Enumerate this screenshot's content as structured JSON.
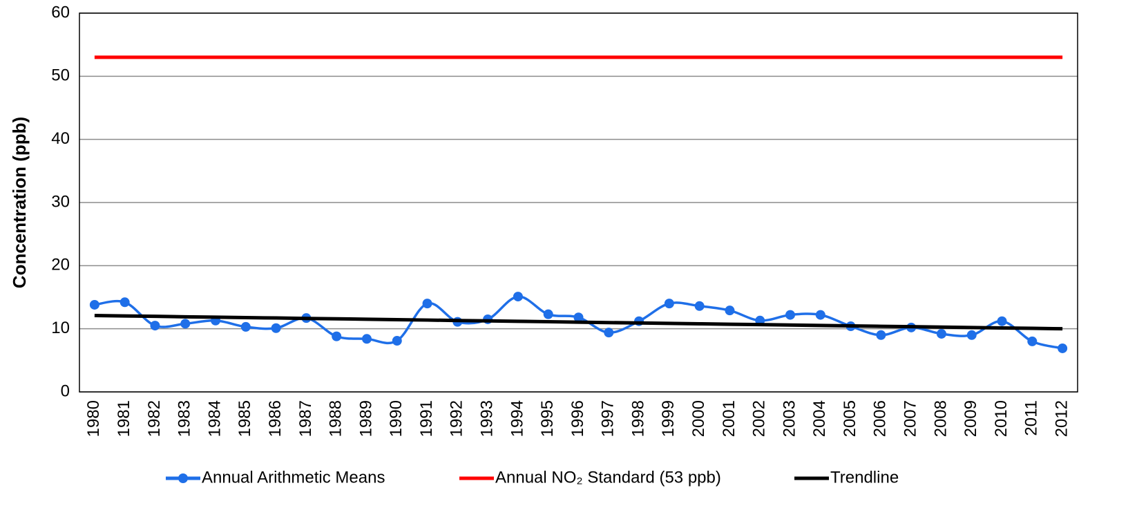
{
  "chart_data": {
    "type": "line",
    "y_label": "Concentration (ppb)",
    "categories": [
      "1980",
      "1981",
      "1982",
      "1983",
      "1984",
      "1985",
      "1986",
      "1987",
      "1988",
      "1989",
      "1990",
      "1991",
      "1992",
      "1993",
      "1994",
      "1995",
      "1996",
      "1997",
      "1998",
      "1999",
      "2000",
      "2001",
      "2002",
      "2003",
      "2004",
      "2005",
      "2006",
      "2007",
      "2008",
      "2009",
      "2010",
      "2011",
      "2012"
    ],
    "series": [
      {
        "name": "Annual Arithmetic Means",
        "color": "#1f6fe8",
        "smooth": true,
        "markers": true,
        "values": [
          13.8,
          14.2,
          10.5,
          10.8,
          11.3,
          10.3,
          10.1,
          11.7,
          8.8,
          8.4,
          8.1,
          14.0,
          11.1,
          11.5,
          15.1,
          12.3,
          11.8,
          9.4,
          11.2,
          14.0,
          13.6,
          12.9,
          11.3,
          12.2,
          12.2,
          10.4,
          9.0,
          10.2,
          9.2,
          9.0,
          11.2,
          8.0,
          6.9
        ]
      },
      {
        "name": "Annual NO₂ Standard (53 ppb)",
        "color": "#ff0000",
        "smooth": false,
        "markers": false,
        "values": [
          53,
          53,
          53,
          53,
          53,
          53,
          53,
          53,
          53,
          53,
          53,
          53,
          53,
          53,
          53,
          53,
          53,
          53,
          53,
          53,
          53,
          53,
          53,
          53,
          53,
          53,
          53,
          53,
          53,
          53,
          53,
          53,
          53
        ]
      },
      {
        "name": "Trendline",
        "color": "#000000",
        "smooth": false,
        "markers": false,
        "values": [
          12.1,
          12.03,
          11.97,
          11.9,
          11.84,
          11.77,
          11.71,
          11.64,
          11.58,
          11.51,
          11.44,
          11.38,
          11.31,
          11.25,
          11.18,
          11.12,
          11.05,
          10.98,
          10.92,
          10.85,
          10.79,
          10.72,
          10.66,
          10.59,
          10.52,
          10.46,
          10.39,
          10.33,
          10.26,
          10.2,
          10.13,
          10.07,
          10.0
        ]
      }
    ],
    "ylim": [
      0,
      60
    ],
    "yticks": [
      0,
      10,
      20,
      30,
      40,
      50,
      60
    ],
    "grid": true,
    "legend": "bottom"
  }
}
